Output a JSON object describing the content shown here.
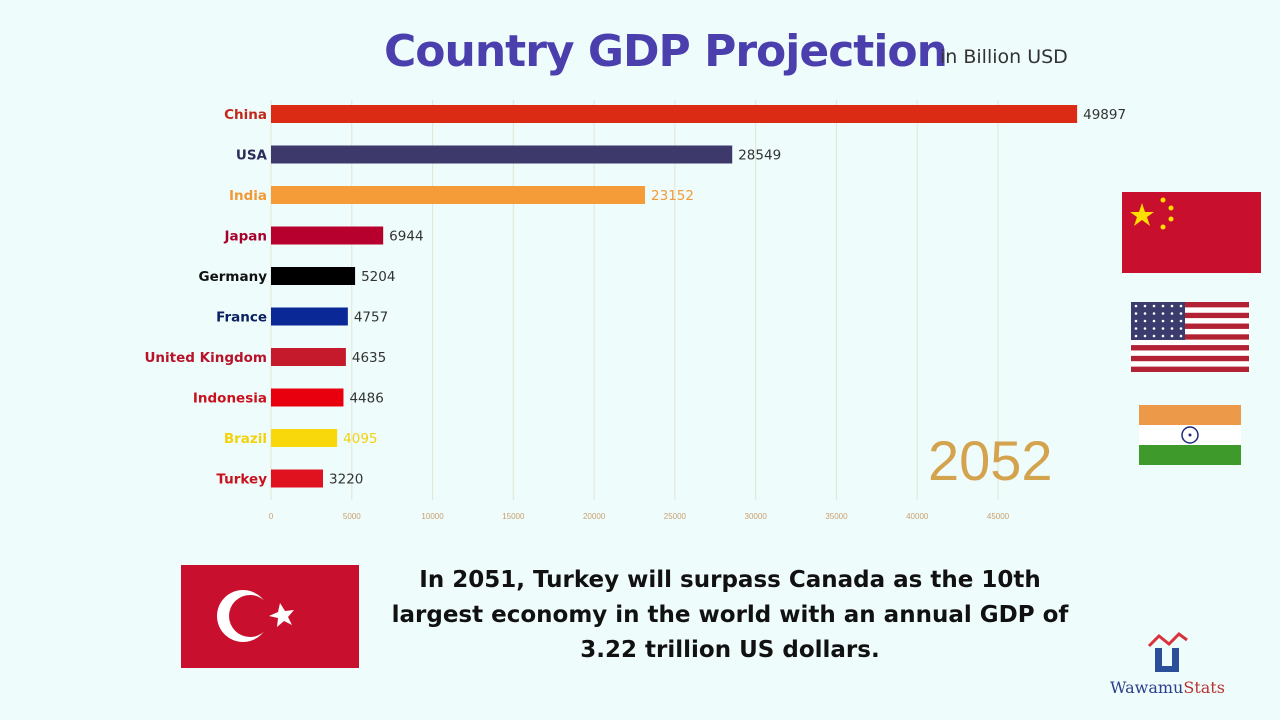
{
  "chart_data": {
    "type": "bar",
    "orientation": "horizontal",
    "title": "Country GDP Projection",
    "subtitle": "in Billion USD",
    "categories": [
      "China",
      "USA",
      "India",
      "Japan",
      "Germany",
      "France",
      "United Kingdom",
      "Indonesia",
      "Brazil",
      "Turkey"
    ],
    "values": [
      49897,
      28549,
      23152,
      6944,
      5204,
      4757,
      4635,
      4486,
      4095,
      3220
    ],
    "colors": [
      "#db2b14",
      "#3d3a6b",
      "#f59b38",
      "#b8002f",
      "#000000",
      "#0a2896",
      "#c41a2c",
      "#e8000e",
      "#f8d80a",
      "#e0121f"
    ],
    "label_colors": [
      "#c0281a",
      "#2d2d5b",
      "#f29a36",
      "#a8002d",
      "#111111",
      "#0a2060",
      "#b8132a",
      "#c8121e",
      "#f2d20a",
      "#c8121e"
    ],
    "xticks": [
      0,
      5000,
      10000,
      15000,
      20000,
      25000,
      30000,
      35000,
      40000,
      45000
    ],
    "xlim": [
      0,
      50000
    ],
    "grid": true,
    "year_label": "2052"
  },
  "caption": "In 2051, Turkey will surpass Canada as the 10th largest economy in the world with an annual GDP of 3.22 trillion US dollars.",
  "logo": {
    "part1": "Wawamu",
    "part2": "Stats"
  },
  "flags": [
    "china-flag",
    "usa-flag",
    "india-flag",
    "turkey-flag"
  ]
}
